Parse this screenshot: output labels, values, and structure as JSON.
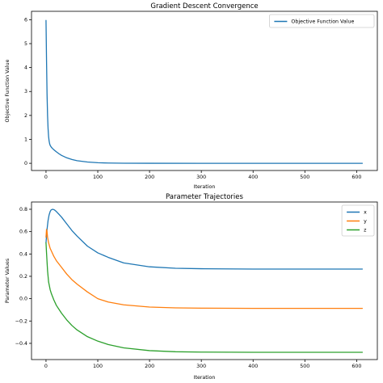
{
  "chart_data": [
    {
      "type": "line",
      "title": "Gradient Descent Convergence",
      "xlabel": "Iteration",
      "ylabel": "Objective Function Value",
      "xlim": [
        -28,
        640
      ],
      "ylim": [
        -0.3,
        6.35
      ],
      "xticks": [
        0,
        100,
        200,
        300,
        400,
        500,
        600
      ],
      "yticks": [
        0,
        1,
        2,
        3,
        4,
        5,
        6
      ],
      "legend": "top-right",
      "grid": false,
      "series": [
        {
          "name": "Objective Function Value",
          "color": "#1f77b4",
          "x": [
            0,
            1,
            2,
            3,
            4,
            5,
            6,
            7,
            8,
            10,
            12,
            15,
            20,
            25,
            30,
            40,
            50,
            60,
            80,
            100,
            120,
            150,
            200,
            300,
            400,
            500,
            611
          ],
          "y": [
            5.97,
            4.3,
            2.9,
            2.0,
            1.45,
            1.12,
            0.93,
            0.82,
            0.75,
            0.68,
            0.63,
            0.57,
            0.48,
            0.4,
            0.33,
            0.23,
            0.16,
            0.11,
            0.055,
            0.025,
            0.012,
            0.004,
            0.001,
            0.0,
            0.0,
            0.0,
            0.0
          ]
        }
      ]
    },
    {
      "type": "line",
      "title": "Parameter Trajectories",
      "xlabel": "Iteration",
      "ylabel": "Parameter Values",
      "xlim": [
        -28,
        640
      ],
      "ylim": [
        -0.545,
        0.865
      ],
      "xticks": [
        0,
        100,
        200,
        300,
        400,
        500,
        600
      ],
      "yticks": [
        -0.4,
        -0.2,
        0.0,
        0.2,
        0.4,
        0.6,
        0.8
      ],
      "legend": "top-right",
      "grid": false,
      "series": [
        {
          "name": "x",
          "color": "#1f77b4",
          "x": [
            0,
            2,
            4,
            6,
            8,
            10,
            13,
            16,
            20,
            25,
            30,
            40,
            50,
            60,
            80,
            100,
            120,
            150,
            200,
            250,
            300,
            400,
            500,
            611
          ],
          "y": [
            0.5,
            0.62,
            0.7,
            0.75,
            0.78,
            0.795,
            0.8,
            0.795,
            0.78,
            0.755,
            0.73,
            0.67,
            0.61,
            0.56,
            0.47,
            0.41,
            0.37,
            0.32,
            0.285,
            0.272,
            0.268,
            0.265,
            0.265,
            0.265
          ]
        },
        {
          "name": "y",
          "color": "#ff7f0e",
          "x": [
            0,
            1,
            2,
            3,
            5,
            8,
            10,
            15,
            20,
            30,
            40,
            50,
            60,
            80,
            100,
            120,
            150,
            200,
            250,
            300,
            400,
            500,
            611
          ],
          "y": [
            0.55,
            0.62,
            0.6,
            0.55,
            0.5,
            0.45,
            0.43,
            0.38,
            0.34,
            0.28,
            0.22,
            0.17,
            0.13,
            0.06,
            0.0,
            -0.03,
            -0.055,
            -0.075,
            -0.082,
            -0.085,
            -0.087,
            -0.087,
            -0.087
          ]
        },
        {
          "name": "z",
          "color": "#2ca02c",
          "x": [
            0,
            1,
            2,
            3,
            5,
            8,
            10,
            15,
            20,
            30,
            40,
            50,
            60,
            80,
            100,
            120,
            150,
            200,
            250,
            300,
            400,
            500,
            611
          ],
          "y": [
            0.5,
            0.41,
            0.33,
            0.25,
            0.15,
            0.08,
            0.05,
            -0.01,
            -0.06,
            -0.13,
            -0.19,
            -0.24,
            -0.28,
            -0.34,
            -0.38,
            -0.41,
            -0.44,
            -0.465,
            -0.475,
            -0.478,
            -0.48,
            -0.48,
            -0.48
          ]
        }
      ]
    }
  ]
}
